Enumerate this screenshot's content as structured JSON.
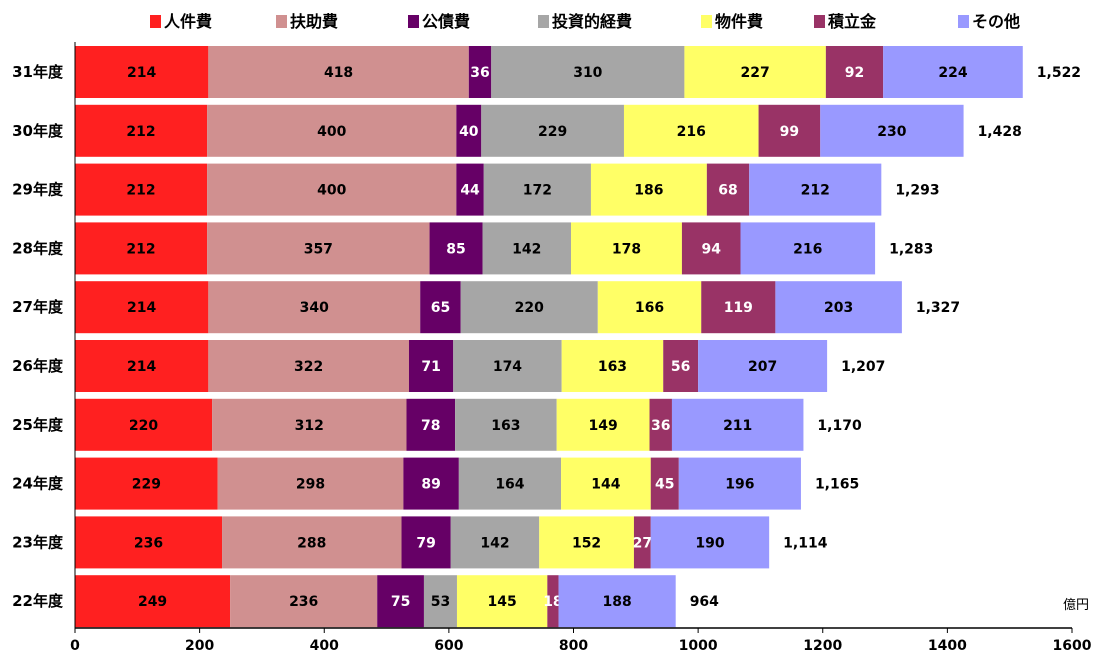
{
  "chart_data": {
    "type": "bar",
    "orientation": "horizontal",
    "stacked": true,
    "unit": "億円",
    "xlim": [
      0,
      1600
    ],
    "xticks": [
      "0",
      "200",
      "400",
      "600",
      "800",
      "1000",
      "1200",
      "1400",
      "1600"
    ],
    "categories": [
      "31年度",
      "30年度",
      "29年度",
      "28年度",
      "27年度",
      "26年度",
      "25年度",
      "24年度",
      "23年度",
      "22年度"
    ],
    "series": [
      {
        "name": "人件費",
        "color": "#ff2020",
        "label_color": "#000000",
        "values": [
          214,
          212,
          212,
          212,
          214,
          214,
          220,
          229,
          236,
          249
        ]
      },
      {
        "name": "扶助費",
        "color": "#d09090",
        "label_color": "#000000",
        "values": [
          418,
          400,
          400,
          357,
          340,
          322,
          312,
          298,
          288,
          236
        ]
      },
      {
        "name": "公債費",
        "color": "#660066",
        "label_color": "#ffffff",
        "values": [
          36,
          40,
          44,
          85,
          65,
          71,
          78,
          89,
          79,
          75
        ]
      },
      {
        "name": "投資的経費",
        "color": "#a6a6a6",
        "label_color": "#000000",
        "values": [
          310,
          229,
          172,
          142,
          220,
          174,
          163,
          164,
          142,
          53
        ]
      },
      {
        "name": "物件費",
        "color": "#ffff66",
        "label_color": "#000000",
        "values": [
          227,
          216,
          186,
          178,
          166,
          163,
          149,
          144,
          152,
          145
        ]
      },
      {
        "name": "積立金",
        "color": "#993366",
        "label_color": "#ffffff",
        "values": [
          92,
          99,
          68,
          94,
          119,
          56,
          36,
          45,
          27,
          18
        ]
      },
      {
        "name": "その他",
        "color": "#9999ff",
        "label_color": "#000000",
        "values": [
          224,
          230,
          212,
          216,
          203,
          207,
          211,
          196,
          190,
          188
        ]
      }
    ],
    "totals": [
      "1,522",
      "1,428",
      "1,293",
      "1,283",
      "1,327",
      "1,207",
      "1,170",
      "1,165",
      "1,114",
      "964"
    ],
    "legend_position": "top",
    "grid": false
  }
}
